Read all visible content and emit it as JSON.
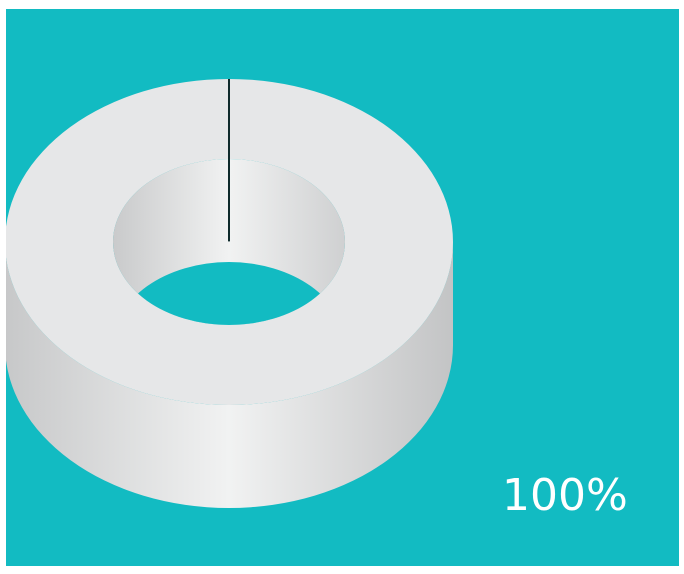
{
  "chart_data": {
    "type": "pie",
    "style": "3d-donut",
    "slices": [
      {
        "value": 100
      }
    ],
    "data_labels": [
      "100%"
    ],
    "title": "",
    "legend": "none",
    "grid": false
  },
  "colors": {
    "background": "#12BBC2",
    "ring_top": "#E6E7E8",
    "ring_side_dark": "#C7C8C9",
    "ring_side_light": "#F1F2F2",
    "divider": "#0E2A2B",
    "label_text": "#FFFFFF"
  }
}
